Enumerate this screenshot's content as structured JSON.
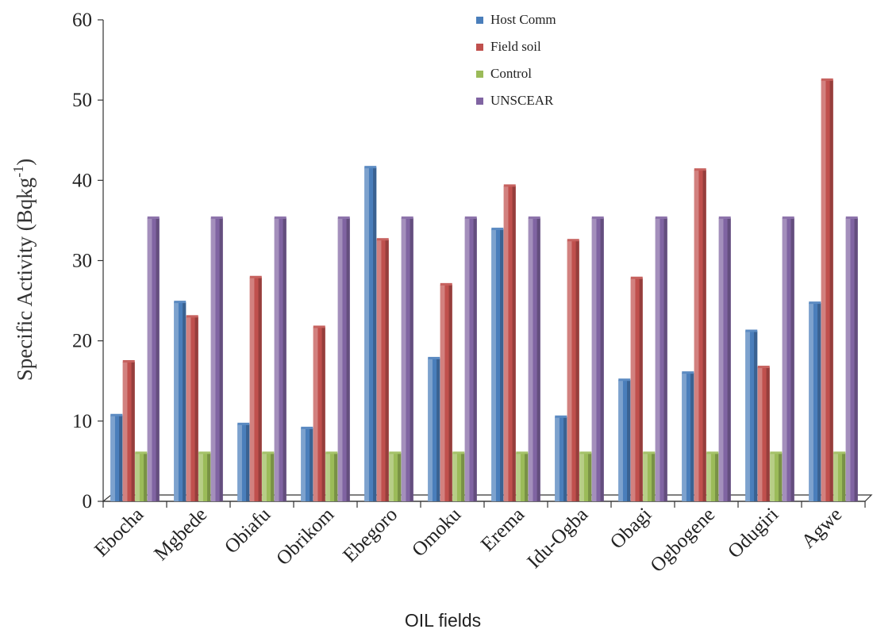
{
  "chart_data": {
    "type": "bar",
    "title": "",
    "xlabel": "OIL fields",
    "ylabel": "Specific Activity (Bqkg",
    "ylabel_superscript": "-1",
    "ylabel_close": ")",
    "ylim": [
      0,
      60
    ],
    "yticks": [
      "0",
      "10",
      "20",
      "30",
      "40",
      "50",
      "60"
    ],
    "grid": false,
    "legend_position": "top-center",
    "categories": [
      "Ebocha",
      "Mgbede",
      "Obiafu",
      "Obrikom",
      "Ebegoro",
      "Omoku",
      "Erema",
      "Idu-Ogba",
      "Obagi",
      "Ogbogene",
      "Odugiri",
      "Agwe"
    ],
    "series": [
      {
        "name": "Host Comm",
        "color": "#4a7ebb",
        "values": [
          10.7,
          24.8,
          9.6,
          9.1,
          41.6,
          17.8,
          33.9,
          10.5,
          15.1,
          16.0,
          21.2,
          24.7
        ]
      },
      {
        "name": "Field soil",
        "color": "#c0504d",
        "values": [
          17.4,
          23.0,
          27.9,
          21.7,
          32.6,
          27.0,
          39.3,
          32.5,
          27.8,
          41.3,
          16.7,
          52.5
        ]
      },
      {
        "name": "Control",
        "color": "#9bbb59",
        "values": [
          6.0,
          6.0,
          6.0,
          6.0,
          6.0,
          6.0,
          6.0,
          6.0,
          6.0,
          6.0,
          6.0,
          6.0
        ]
      },
      {
        "name": "UNSCEAR",
        "color": "#8064a2",
        "values": [
          35.3,
          35.3,
          35.3,
          35.3,
          35.3,
          35.3,
          35.3,
          35.3,
          35.3,
          35.3,
          35.3,
          35.3
        ]
      }
    ]
  }
}
